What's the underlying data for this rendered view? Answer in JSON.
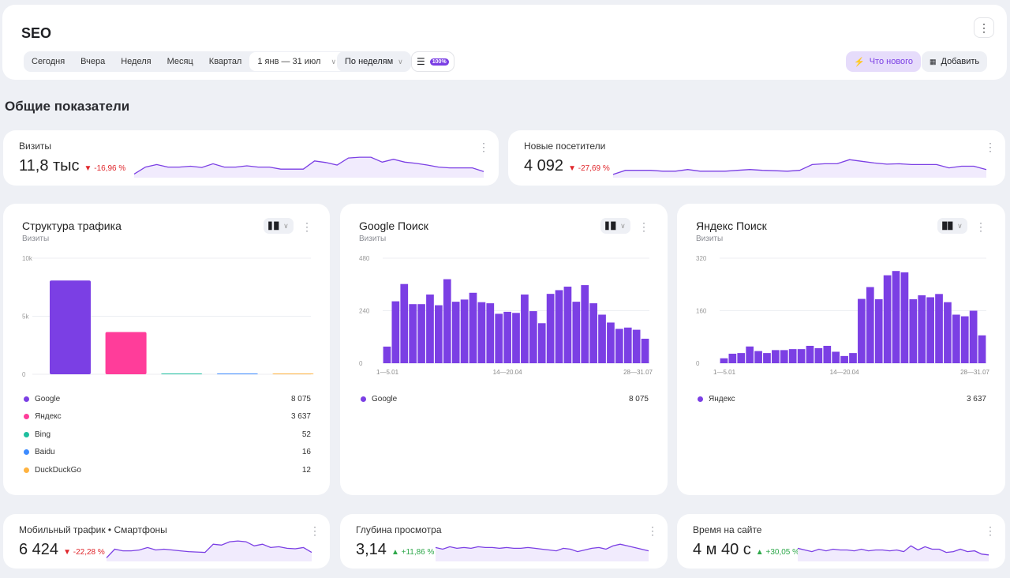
{
  "header": {
    "title": "SEO",
    "periods": [
      "Сегодня",
      "Вчера",
      "Неделя",
      "Месяц",
      "Квартал"
    ],
    "date_range": "1 янв — 31 июл",
    "grouping": "По неделям",
    "sample_badge": "100%",
    "whats_new": "Что нового",
    "add": "Добавить"
  },
  "section_title": "Общие показатели",
  "kpis": [
    {
      "label": "Визиты",
      "value": "11,8 тыс",
      "delta": "-16,96 %",
      "dir": "down",
      "spark": [
        5,
        22,
        28,
        22,
        22,
        24,
        21,
        30,
        22,
        22,
        25,
        22,
        22,
        17,
        17,
        17,
        37,
        33,
        27,
        44,
        46,
        46,
        34,
        41,
        34,
        31,
        27,
        22,
        20,
        20,
        20,
        11
      ]
    },
    {
      "label": "Новые посетители",
      "value": "4 092",
      "delta": "-27,69 %",
      "dir": "down",
      "spark": [
        4,
        14,
        14,
        14,
        12,
        12,
        16,
        12,
        12,
        12,
        14,
        16,
        14,
        13,
        12,
        14,
        28,
        30,
        30,
        40,
        36,
        32,
        29,
        30,
        28,
        28,
        28,
        20,
        24,
        24,
        16
      ]
    },
    {
      "label": "Мобильный трафик • Смартфоны",
      "value": "6 424",
      "delta": "-22,28 %",
      "dir": "down",
      "spark": [
        5,
        26,
        22,
        22,
        24,
        30,
        24,
        26,
        24,
        22,
        20,
        19,
        18,
        38,
        36,
        44,
        46,
        44,
        34,
        38,
        30,
        32,
        28,
        27,
        30,
        18
      ]
    },
    {
      "label": "Глубина просмотра",
      "value": "3,14",
      "delta": "+11,86 %",
      "dir": "up",
      "spark": [
        30,
        26,
        32,
        28,
        30,
        28,
        32,
        30,
        30,
        28,
        30,
        28,
        28,
        30,
        28,
        26,
        24,
        22,
        28,
        26,
        20,
        24,
        28,
        30,
        26,
        34,
        38,
        34,
        30,
        26,
        22
      ]
    },
    {
      "label": "Время на сайте",
      "value": "4 м 40 с",
      "delta": "+30,05 %",
      "dir": "up",
      "spark": [
        28,
        24,
        20,
        26,
        22,
        26,
        24,
        24,
        22,
        26,
        22,
        24,
        24,
        22,
        24,
        20,
        34,
        24,
        32,
        26,
        26,
        18,
        20,
        26,
        20,
        22,
        14,
        12
      ]
    }
  ],
  "structure": {
    "title": "Структура трафика",
    "subtitle": "Визиты",
    "yticks": [
      "10k",
      "5k",
      "0"
    ],
    "legend": [
      {
        "name": "Google",
        "value": "8 075",
        "v": 8075,
        "color": "#7b3fe4"
      },
      {
        "name": "Яндекс",
        "value": "3 637",
        "v": 3637,
        "color": "#ff3d9a"
      },
      {
        "name": "Bing",
        "value": "52",
        "v": 52,
        "color": "#1fbf9f"
      },
      {
        "name": "Baidu",
        "value": "16",
        "v": 16,
        "color": "#3d8bff"
      },
      {
        "name": "DuckDuckGo",
        "value": "12",
        "v": 12,
        "color": "#ffb340"
      }
    ]
  },
  "chart_data": [
    {
      "type": "bar",
      "title": "Структура трафика",
      "ylabel": "Визиты",
      "categories": [
        "Google",
        "Яндекс",
        "Bing",
        "Baidu",
        "DuckDuckGo"
      ],
      "values": [
        8075,
        3637,
        52,
        16,
        12
      ],
      "ylim": [
        0,
        10000
      ]
    },
    {
      "type": "bar",
      "title": "Google Поиск",
      "ylabel": "Визиты",
      "ylim": [
        0,
        480
      ],
      "yticks": [
        "480",
        "240",
        "0"
      ],
      "xticks": [
        "1—5.01",
        "14—20.04",
        "28—31.07"
      ],
      "legend": {
        "name": "Google",
        "value": "8 075"
      },
      "values": [
        76,
        283,
        362,
        270,
        270,
        314,
        265,
        384,
        281,
        291,
        322,
        279,
        274,
        226,
        235,
        230,
        314,
        238,
        183,
        317,
        334,
        350,
        281,
        357,
        274,
        222,
        186,
        157,
        163,
        153,
        112
      ]
    },
    {
      "type": "bar",
      "title": "Яндекс Поиск",
      "ylabel": "Визиты",
      "ylim": [
        0,
        320
      ],
      "yticks": [
        "320",
        "160",
        "0"
      ],
      "xticks": [
        "1—5.01",
        "14—20.04",
        "28—31.07"
      ],
      "legend": {
        "name": "Яндекс",
        "value": "3 637"
      },
      "values": [
        15,
        29,
        31,
        51,
        37,
        31,
        40,
        40,
        43,
        43,
        53,
        46,
        53,
        35,
        22,
        31,
        196,
        232,
        195,
        268,
        281,
        277,
        195,
        207,
        201,
        211,
        186,
        148,
        143,
        160,
        85
      ]
    }
  ],
  "colors": {
    "accent": "#7b3fe4",
    "down": "#e0262b",
    "up": "#2ea84a"
  }
}
